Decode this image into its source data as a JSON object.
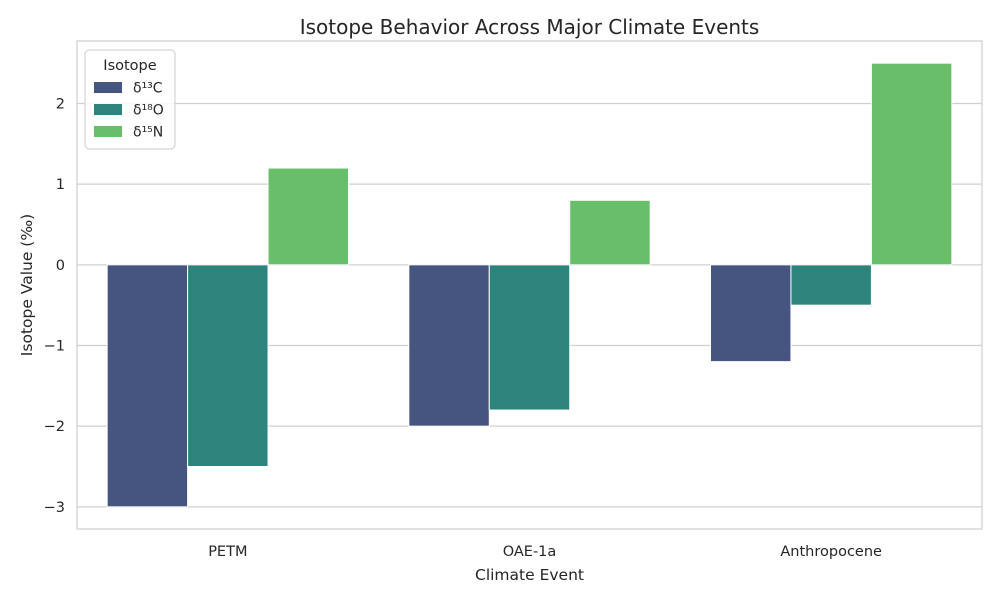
{
  "chart_data": {
    "type": "bar",
    "title": "Isotope Behavior Across Major Climate Events",
    "xlabel": "Climate Event",
    "ylabel": "Isotope Value (‰)",
    "categories": [
      "PETM",
      "OAE-1a",
      "Anthropocene"
    ],
    "series": [
      {
        "name": "δ¹³C",
        "values": [
          -3.0,
          -2.0,
          -1.2
        ],
        "color": "#45557f"
      },
      {
        "name": "δ¹⁸O",
        "values": [
          -2.5,
          -1.8,
          -0.5
        ],
        "color": "#2d847d"
      },
      {
        "name": "δ¹⁵N",
        "values": [
          1.2,
          0.8,
          2.5
        ],
        "color": "#69be6a"
      }
    ],
    "ylim": [
      -3.275,
      2.775
    ],
    "yticks": [
      -3,
      -2,
      -1,
      0,
      1,
      2
    ],
    "ytick_labels": [
      "−3",
      "−2",
      "−1",
      "0",
      "1",
      "2"
    ],
    "grid": true,
    "legend": {
      "title": "Isotope",
      "position": "top-left"
    }
  }
}
